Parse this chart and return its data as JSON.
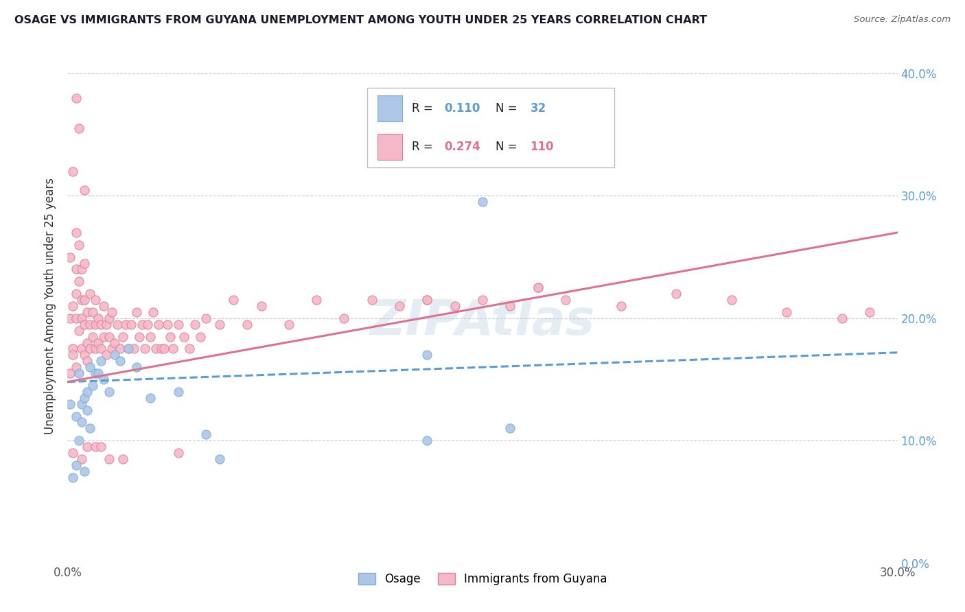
{
  "title": "OSAGE VS IMMIGRANTS FROM GUYANA UNEMPLOYMENT AMONG YOUTH UNDER 25 YEARS CORRELATION CHART",
  "source": "Source: ZipAtlas.com",
  "ylabel_label": "Unemployment Among Youth under 25 years",
  "legend_label1": "Osage",
  "legend_label2": "Immigrants from Guyana",
  "R1": "0.110",
  "N1": "32",
  "R2": "0.274",
  "N2": "110",
  "color_blue_fill": "#aec6e8",
  "color_blue_edge": "#7bafd4",
  "color_pink_fill": "#f4b8c8",
  "color_pink_edge": "#e08098",
  "color_line_blue": "#5b9bd5",
  "color_line_pink": "#e07090",
  "color_grid": "#c8c8d0",
  "color_raxis": "#5b9bd5",
  "xlim": [
    0.0,
    0.3
  ],
  "ylim": [
    0.0,
    0.42
  ],
  "x_tick_pos": [
    0.0,
    0.3
  ],
  "x_tick_labels": [
    "0.0%",
    "30.0%"
  ],
  "y_tick_pos": [
    0.0,
    0.1,
    0.2,
    0.3,
    0.4
  ],
  "y_tick_labels": [
    "0.0%",
    "10.0%",
    "20.0%",
    "30.0%",
    "40.0%"
  ],
  "watermark": "ZIPAtlas",
  "osage_x": [
    0.001,
    0.002,
    0.003,
    0.003,
    0.004,
    0.004,
    0.005,
    0.005,
    0.006,
    0.006,
    0.007,
    0.007,
    0.008,
    0.008,
    0.009,
    0.01,
    0.011,
    0.012,
    0.013,
    0.015,
    0.017,
    0.019,
    0.022,
    0.025,
    0.03,
    0.04,
    0.05,
    0.055,
    0.13,
    0.15,
    0.13,
    0.16
  ],
  "osage_y": [
    0.13,
    0.07,
    0.12,
    0.08,
    0.155,
    0.1,
    0.115,
    0.13,
    0.135,
    0.075,
    0.14,
    0.125,
    0.16,
    0.11,
    0.145,
    0.155,
    0.155,
    0.165,
    0.15,
    0.14,
    0.17,
    0.165,
    0.175,
    0.16,
    0.135,
    0.14,
    0.105,
    0.085,
    0.17,
    0.295,
    0.1,
    0.11
  ],
  "guyana_x": [
    0.001,
    0.001,
    0.001,
    0.002,
    0.002,
    0.002,
    0.002,
    0.003,
    0.003,
    0.003,
    0.003,
    0.003,
    0.004,
    0.004,
    0.004,
    0.005,
    0.005,
    0.005,
    0.005,
    0.006,
    0.006,
    0.006,
    0.006,
    0.007,
    0.007,
    0.007,
    0.008,
    0.008,
    0.008,
    0.009,
    0.009,
    0.01,
    0.01,
    0.01,
    0.011,
    0.011,
    0.012,
    0.012,
    0.013,
    0.013,
    0.014,
    0.014,
    0.015,
    0.015,
    0.016,
    0.016,
    0.017,
    0.018,
    0.019,
    0.02,
    0.021,
    0.022,
    0.023,
    0.024,
    0.025,
    0.026,
    0.027,
    0.028,
    0.029,
    0.03,
    0.031,
    0.032,
    0.033,
    0.034,
    0.035,
    0.036,
    0.037,
    0.038,
    0.04,
    0.042,
    0.044,
    0.046,
    0.048,
    0.05,
    0.055,
    0.06,
    0.065,
    0.07,
    0.08,
    0.09,
    0.1,
    0.11,
    0.12,
    0.13,
    0.14,
    0.15,
    0.16,
    0.17,
    0.18,
    0.2,
    0.22,
    0.24,
    0.26,
    0.13,
    0.17,
    0.28,
    0.29,
    0.04,
    0.02,
    0.006,
    0.004,
    0.003,
    0.005,
    0.007,
    0.002,
    0.01,
    0.012,
    0.015
  ],
  "guyana_y": [
    0.155,
    0.2,
    0.25,
    0.175,
    0.32,
    0.21,
    0.17,
    0.27,
    0.24,
    0.2,
    0.16,
    0.22,
    0.26,
    0.19,
    0.23,
    0.215,
    0.175,
    0.24,
    0.2,
    0.195,
    0.215,
    0.17,
    0.245,
    0.18,
    0.205,
    0.165,
    0.195,
    0.175,
    0.22,
    0.185,
    0.205,
    0.175,
    0.195,
    0.215,
    0.18,
    0.2,
    0.195,
    0.175,
    0.21,
    0.185,
    0.195,
    0.17,
    0.185,
    0.2,
    0.175,
    0.205,
    0.18,
    0.195,
    0.175,
    0.185,
    0.195,
    0.175,
    0.195,
    0.175,
    0.205,
    0.185,
    0.195,
    0.175,
    0.195,
    0.185,
    0.205,
    0.175,
    0.195,
    0.175,
    0.175,
    0.195,
    0.185,
    0.175,
    0.195,
    0.185,
    0.175,
    0.195,
    0.185,
    0.2,
    0.195,
    0.215,
    0.195,
    0.21,
    0.195,
    0.215,
    0.2,
    0.215,
    0.21,
    0.215,
    0.21,
    0.215,
    0.21,
    0.225,
    0.215,
    0.21,
    0.22,
    0.215,
    0.205,
    0.215,
    0.225,
    0.2,
    0.205,
    0.09,
    0.085,
    0.305,
    0.355,
    0.38,
    0.085,
    0.095,
    0.09,
    0.095,
    0.095,
    0.085
  ]
}
